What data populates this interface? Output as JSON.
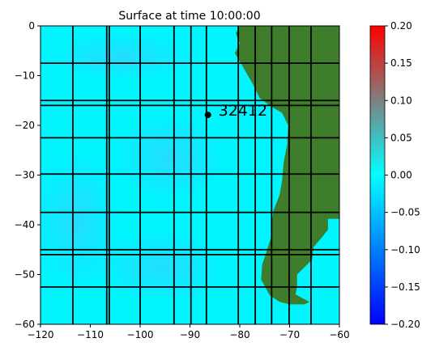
{
  "chart_data": {
    "type": "heatmap",
    "title": "Surface at time 10:00:00",
    "xlim": [
      -120,
      -60
    ],
    "ylim": [
      -60,
      0
    ],
    "x_ticks": [
      -120,
      -110,
      -100,
      -90,
      -80,
      -70,
      -60
    ],
    "y_ticks": [
      0,
      -10,
      -20,
      -30,
      -40,
      -50,
      -60
    ],
    "x_tick_labels": [
      "−120",
      "−110",
      "−100",
      "−90",
      "−80",
      "−70",
      "−60"
    ],
    "y_tick_labels": [
      "0",
      "−10",
      "−20",
      "−30",
      "−40",
      "−50",
      "−60"
    ],
    "colorbar": {
      "range": [
        -0.2,
        0.2
      ],
      "ticks": [
        0.2,
        0.15,
        0.1,
        0.05,
        0.0,
        -0.05,
        -0.1,
        -0.15,
        -0.2
      ],
      "tick_labels": [
        "0.20",
        "0.15",
        "0.10",
        "0.05",
        "0.00",
        "−0.05",
        "−0.10",
        "−0.15",
        "−0.20"
      ],
      "colors": [
        "#0000ff",
        "#00ffff",
        "#ff0000"
      ]
    },
    "grid_lines": {
      "vertical_x": [
        -113.5,
        -106.7,
        -106.2,
        -100,
        -93.2,
        -89.8,
        -86.7,
        -80.3,
        -76.9,
        -73.6,
        -70.1,
        -65.7
      ],
      "horizontal_y": [
        -7.5,
        -15,
        -16,
        -22.5,
        -29.8,
        -37.5,
        -45,
        -46,
        -52.5
      ]
    },
    "land_color": "#3d7d2b",
    "ocean_color": "#00f5ff",
    "land_outline": [
      [
        -72.5,
        0
      ],
      [
        -60,
        0
      ],
      [
        -60,
        -38.8
      ],
      [
        -62.3,
        -38.8
      ],
      [
        -62.3,
        -41
      ],
      [
        -63.5,
        -42.5
      ],
      [
        -65.2,
        -44.5
      ],
      [
        -65.5,
        -47
      ],
      [
        -66.5,
        -48
      ],
      [
        -68.5,
        -50
      ],
      [
        -68.5,
        -52.5
      ],
      [
        -68.8,
        -54
      ],
      [
        -66,
        -55.5
      ],
      [
        -67,
        -56
      ],
      [
        -70,
        -56
      ],
      [
        -72,
        -55.5
      ],
      [
        -74,
        -54.2
      ],
      [
        -75.7,
        -51
      ],
      [
        -75.5,
        -48
      ],
      [
        -74.5,
        -45
      ],
      [
        -73.7,
        -42.5
      ],
      [
        -73.5,
        -39
      ],
      [
        -73.2,
        -37
      ],
      [
        -72,
        -34
      ],
      [
        -71.5,
        -31
      ],
      [
        -71.2,
        -27.5
      ],
      [
        -70.5,
        -24
      ],
      [
        -70.3,
        -20
      ],
      [
        -71.5,
        -17.5
      ],
      [
        -74,
        -16
      ],
      [
        -76,
        -14.5
      ],
      [
        -77.5,
        -11.5
      ],
      [
        -79.5,
        -8
      ],
      [
        -81,
        -5.5
      ],
      [
        -80,
        -3.5
      ],
      [
        -80.8,
        -1.5
      ],
      [
        -80,
        0
      ]
    ],
    "points": [
      {
        "label": "32412",
        "x": -86.4,
        "y": -17.9
      }
    ]
  }
}
